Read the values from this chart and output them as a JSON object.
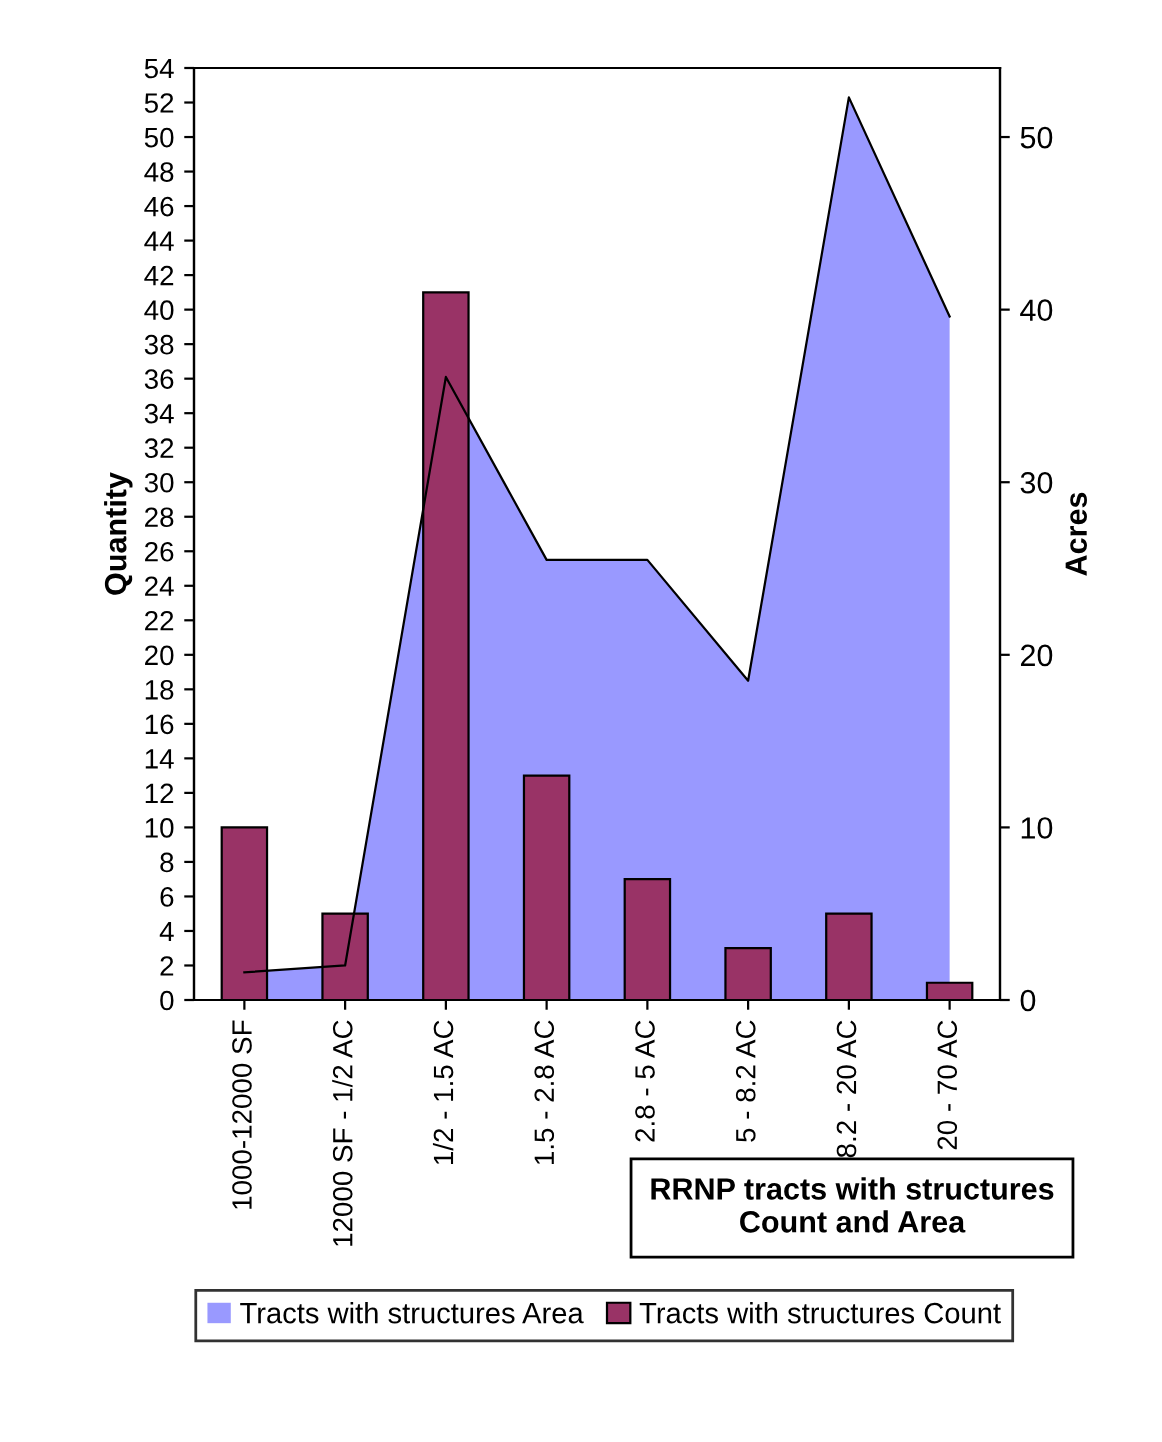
{
  "chart_data": {
    "type": "bar",
    "title": "RRNP tracts with structures\nCount and Area",
    "ylabel": "Quantity",
    "y2label": "Acres",
    "categories": [
      "1000-12000 SF",
      "12000 SF - 1/2 AC",
      "1/2 - 1.5 AC",
      "1.5 - 2.8 AC",
      "2.8 - 5 AC",
      "5 - 8.2 AC",
      "8.2 - 20 AC",
      "20 - 70 AC"
    ],
    "series": [
      {
        "name": "Tracts with structures Area",
        "type": "area",
        "axis": "y2",
        "color": "#9999ff",
        "values": [
          1.6,
          2.0,
          36.1,
          25.5,
          25.5,
          18.5,
          52.3,
          39.6
        ]
      },
      {
        "name": "Tracts with structures Count",
        "color": "#993366",
        "values": [
          10,
          5,
          41,
          13,
          7,
          3,
          5,
          1
        ]
      }
    ],
    "ylim": [
      0,
      54
    ],
    "yticks": [
      0,
      2,
      4,
      6,
      8,
      10,
      12,
      14,
      16,
      18,
      20,
      22,
      24,
      26,
      28,
      30,
      32,
      34,
      36,
      38,
      40,
      42,
      44,
      46,
      48,
      50,
      52,
      54
    ],
    "y2lim": [
      0,
      54
    ],
    "y2ticks": [
      0,
      10,
      20,
      30,
      40,
      50
    ],
    "grid": false,
    "legend": "bottom"
  }
}
